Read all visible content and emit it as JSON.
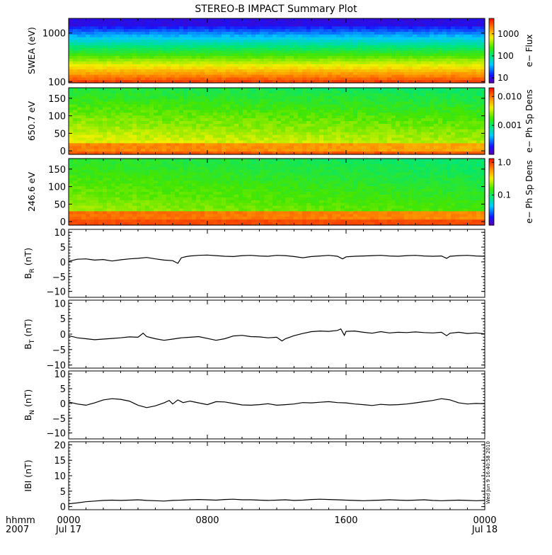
{
  "title": "STEREO-B IMPACT Summary Plot",
  "stamp": "Wed Jun  9 16:40:58 2010",
  "time_axis": {
    "row1_label": "hhmm",
    "row2_label": "2007",
    "ticks": [
      {
        "hhmm": "0000",
        "date": "Jul 17",
        "hours": 0
      },
      {
        "hhmm": "0800",
        "date": "",
        "hours": 8
      },
      {
        "hhmm": "1600",
        "date": "",
        "hours": 16
      },
      {
        "hhmm": "0000",
        "date": "Jul 18",
        "hours": 24
      }
    ],
    "range_hours": [
      0,
      24
    ]
  },
  "chart_data": [
    {
      "type": "heatmap",
      "id": "swea",
      "ylabel": "SWEA (eV)",
      "yscale": "log",
      "ylim": [
        95,
        2000
      ],
      "yticks": [
        {
          "v": 100,
          "label": "100"
        },
        {
          "v": 1000,
          "label": "1000"
        }
      ],
      "colorbar": {
        "label": "e− Flux",
        "scale": "log",
        "range": [
          6,
          5000
        ],
        "ticks": [
          {
            "v": 10,
            "label": "10"
          },
          {
            "v": 100,
            "label": "100"
          },
          {
            "v": 1000,
            "label": "1000"
          }
        ]
      },
      "colormap": "rainbow"
    },
    {
      "type": "heatmap",
      "id": "pad650",
      "ylabel": "650.7 eV",
      "ylim": [
        -10,
        180
      ],
      "yticks": [
        {
          "v": 0,
          "label": "0"
        },
        {
          "v": 50,
          "label": "50"
        },
        {
          "v": 100,
          "label": "100"
        },
        {
          "v": 150,
          "label": "150"
        }
      ],
      "colorbar": {
        "label": "e− Ph Sp Dens",
        "scale": "log",
        "range": [
          0.0001,
          0.02
        ],
        "ticks": [
          {
            "v": 0.001,
            "label": "0.001"
          },
          {
            "v": 0.01,
            "label": "0.010"
          }
        ]
      },
      "colormap": "rainbow"
    },
    {
      "type": "heatmap",
      "id": "pad246",
      "ylabel": "246.6 eV",
      "ylim": [
        -10,
        180
      ],
      "yticks": [
        {
          "v": 0,
          "label": "0"
        },
        {
          "v": 50,
          "label": "50"
        },
        {
          "v": 100,
          "label": "100"
        },
        {
          "v": 150,
          "label": "150"
        }
      ],
      "colorbar": {
        "label": "e− Ph Sp Dens",
        "scale": "log",
        "range": [
          0.012,
          1.3
        ],
        "ticks": [
          {
            "v": 0.1,
            "label": "0.1"
          },
          {
            "v": 1.0,
            "label": "1.0"
          }
        ]
      },
      "colormap": "rainbow"
    },
    {
      "type": "line",
      "id": "br",
      "ylabel_main": "B",
      "ylabel_sub": "R",
      "ylabel_unit": " (nT)",
      "ylim": [
        -12,
        11
      ],
      "yticks": [
        {
          "v": -10,
          "label": "−10"
        },
        {
          "v": -5,
          "label": "−5"
        },
        {
          "v": 0,
          "label": "0"
        },
        {
          "v": 5,
          "label": "5"
        },
        {
          "v": 10,
          "label": "10"
        }
      ],
      "x": [
        0,
        0.5,
        1,
        1.5,
        2,
        2.5,
        3,
        3.5,
        4,
        4.5,
        5,
        5.5,
        6,
        6.3,
        6.5,
        6.8,
        7,
        7.5,
        8,
        8.5,
        9,
        9.5,
        10,
        10.5,
        11,
        11.5,
        12,
        12.5,
        13,
        13.5,
        14,
        14.5,
        15,
        15.5,
        15.8,
        16,
        16.5,
        17,
        17.5,
        18,
        18.5,
        19,
        19.5,
        20,
        20.5,
        21,
        21.5,
        21.8,
        22,
        22.5,
        23,
        23.5,
        24
      ],
      "y": [
        0.2,
        0.9,
        1.0,
        0.6,
        0.8,
        0.3,
        0.7,
        1.0,
        1.2,
        1.5,
        1.0,
        0.6,
        0.4,
        -0.5,
        1.4,
        1.8,
        2.0,
        2.2,
        2.3,
        2.1,
        1.9,
        1.8,
        2.1,
        2.2,
        2.0,
        1.9,
        2.2,
        2.1,
        1.8,
        1.4,
        1.8,
        2.0,
        2.2,
        1.9,
        1.0,
        1.7,
        1.9,
        2.0,
        2.1,
        2.2,
        2.0,
        1.9,
        2.1,
        2.2,
        2.0,
        1.9,
        2.0,
        1.2,
        1.9,
        2.1,
        2.2,
        2.0,
        1.9
      ]
    },
    {
      "type": "line",
      "id": "bt",
      "ylabel_main": "B",
      "ylabel_sub": "T",
      "ylabel_unit": " (nT)",
      "ylim": [
        -11,
        11
      ],
      "yticks": [
        {
          "v": -10,
          "label": "−10"
        },
        {
          "v": -5,
          "label": "−5"
        },
        {
          "v": 0,
          "label": "0"
        },
        {
          "v": 5,
          "label": "5"
        },
        {
          "v": 10,
          "label": "10"
        }
      ],
      "x": [
        0,
        0.5,
        1,
        1.5,
        2,
        2.5,
        3,
        3.5,
        4,
        4.3,
        4.5,
        5,
        5.5,
        6,
        6.5,
        7,
        7.5,
        8,
        8.5,
        9,
        9.5,
        10,
        10.5,
        11,
        11.5,
        12,
        12.3,
        12.5,
        13,
        13.5,
        14,
        14.5,
        15,
        15.5,
        15.7,
        15.9,
        16,
        16.5,
        17,
        17.5,
        18,
        18.5,
        19,
        19.5,
        20,
        20.5,
        21,
        21.5,
        21.8,
        22,
        22.5,
        23,
        23.5,
        24
      ],
      "y": [
        -0.5,
        -1.2,
        -1.5,
        -1.8,
        -1.6,
        -1.4,
        -1.2,
        -0.9,
        -1.0,
        0.3,
        -0.8,
        -1.5,
        -2.0,
        -1.6,
        -1.2,
        -1.0,
        -0.8,
        -1.4,
        -2.0,
        -1.5,
        -0.6,
        -0.4,
        -0.8,
        -0.9,
        -1.2,
        -1.0,
        -2.2,
        -1.5,
        -0.5,
        0.2,
        0.8,
        1.0,
        0.9,
        1.2,
        1.7,
        -0.4,
        0.9,
        1.0,
        0.6,
        0.3,
        0.8,
        0.4,
        0.6,
        0.5,
        0.7,
        0.5,
        0.4,
        0.6,
        -0.5,
        0.3,
        0.6,
        0.2,
        0.4,
        0.1
      ]
    },
    {
      "type": "line",
      "id": "bn",
      "ylabel_main": "B",
      "ylabel_sub": "N",
      "ylabel_unit": " (nT)",
      "ylim": [
        -12,
        11
      ],
      "yticks": [
        {
          "v": -10,
          "label": "−10"
        },
        {
          "v": -5,
          "label": "−5"
        },
        {
          "v": 0,
          "label": "0"
        },
        {
          "v": 5,
          "label": "5"
        },
        {
          "v": 10,
          "label": "10"
        }
      ],
      "x": [
        0,
        0.5,
        1,
        1.5,
        2,
        2.5,
        3,
        3.5,
        4,
        4.5,
        5,
        5.5,
        5.8,
        6,
        6.3,
        6.6,
        7,
        7.5,
        8,
        8.5,
        9,
        9.5,
        10,
        10.5,
        11,
        11.5,
        12,
        12.5,
        13,
        13.5,
        14,
        14.5,
        15,
        15.5,
        16,
        16.5,
        17,
        17.5,
        18,
        18.5,
        19,
        19.5,
        20,
        20.5,
        21,
        21.5,
        22,
        22.5,
        23,
        23.5,
        24
      ],
      "y": [
        0.5,
        -0.2,
        -0.6,
        0.2,
        1.2,
        1.6,
        1.4,
        0.8,
        -0.6,
        -1.4,
        -0.8,
        0.2,
        1.0,
        -0.2,
        1.2,
        0.3,
        0.8,
        0.2,
        -0.4,
        0.6,
        0.5,
        0.0,
        -0.5,
        -0.6,
        -0.4,
        -0.1,
        -0.6,
        -0.4,
        -0.2,
        0.3,
        0.2,
        0.4,
        0.6,
        0.3,
        0.2,
        -0.2,
        -0.4,
        -0.7,
        -0.3,
        -0.5,
        -0.4,
        -0.2,
        0.2,
        0.6,
        1.0,
        1.6,
        1.2,
        0.2,
        -0.2,
        0.0,
        -0.1
      ]
    },
    {
      "type": "line",
      "id": "bmag",
      "ylabel_main": "IBI (nT)",
      "ylabel_sub": "",
      "ylabel_unit": "",
      "ylim": [
        -1,
        21
      ],
      "yticks": [
        {
          "v": 0,
          "label": "0"
        },
        {
          "v": 5,
          "label": "5"
        },
        {
          "v": 10,
          "label": "10"
        },
        {
          "v": 15,
          "label": "15"
        },
        {
          "v": 20,
          "label": "20"
        }
      ],
      "x": [
        0,
        0.5,
        1,
        1.5,
        2,
        2.5,
        3,
        3.5,
        4,
        4.5,
        5,
        5.5,
        6,
        6.5,
        7,
        7.5,
        8,
        8.5,
        9,
        9.5,
        10,
        10.5,
        11,
        11.5,
        12,
        12.5,
        13,
        13.5,
        14,
        14.5,
        15,
        15.5,
        16,
        16.5,
        17,
        17.5,
        18,
        18.5,
        19,
        19.5,
        20,
        20.5,
        21,
        21.5,
        22,
        22.5,
        23,
        23.5,
        24
      ],
      "y": [
        0.9,
        1.2,
        1.6,
        1.8,
        2.0,
        2.1,
        2.0,
        2.1,
        2.2,
        2.0,
        1.9,
        1.8,
        2.0,
        2.1,
        2.2,
        2.3,
        2.2,
        2.1,
        2.3,
        2.4,
        2.2,
        2.2,
        2.1,
        2.0,
        2.1,
        2.2,
        2.0,
        2.1,
        2.3,
        2.4,
        2.3,
        2.2,
        2.1,
        2.0,
        1.9,
        2.0,
        2.1,
        2.2,
        2.1,
        2.0,
        2.1,
        2.2,
        2.0,
        1.9,
        2.0,
        2.1,
        2.0,
        1.9,
        2.0
      ]
    }
  ]
}
